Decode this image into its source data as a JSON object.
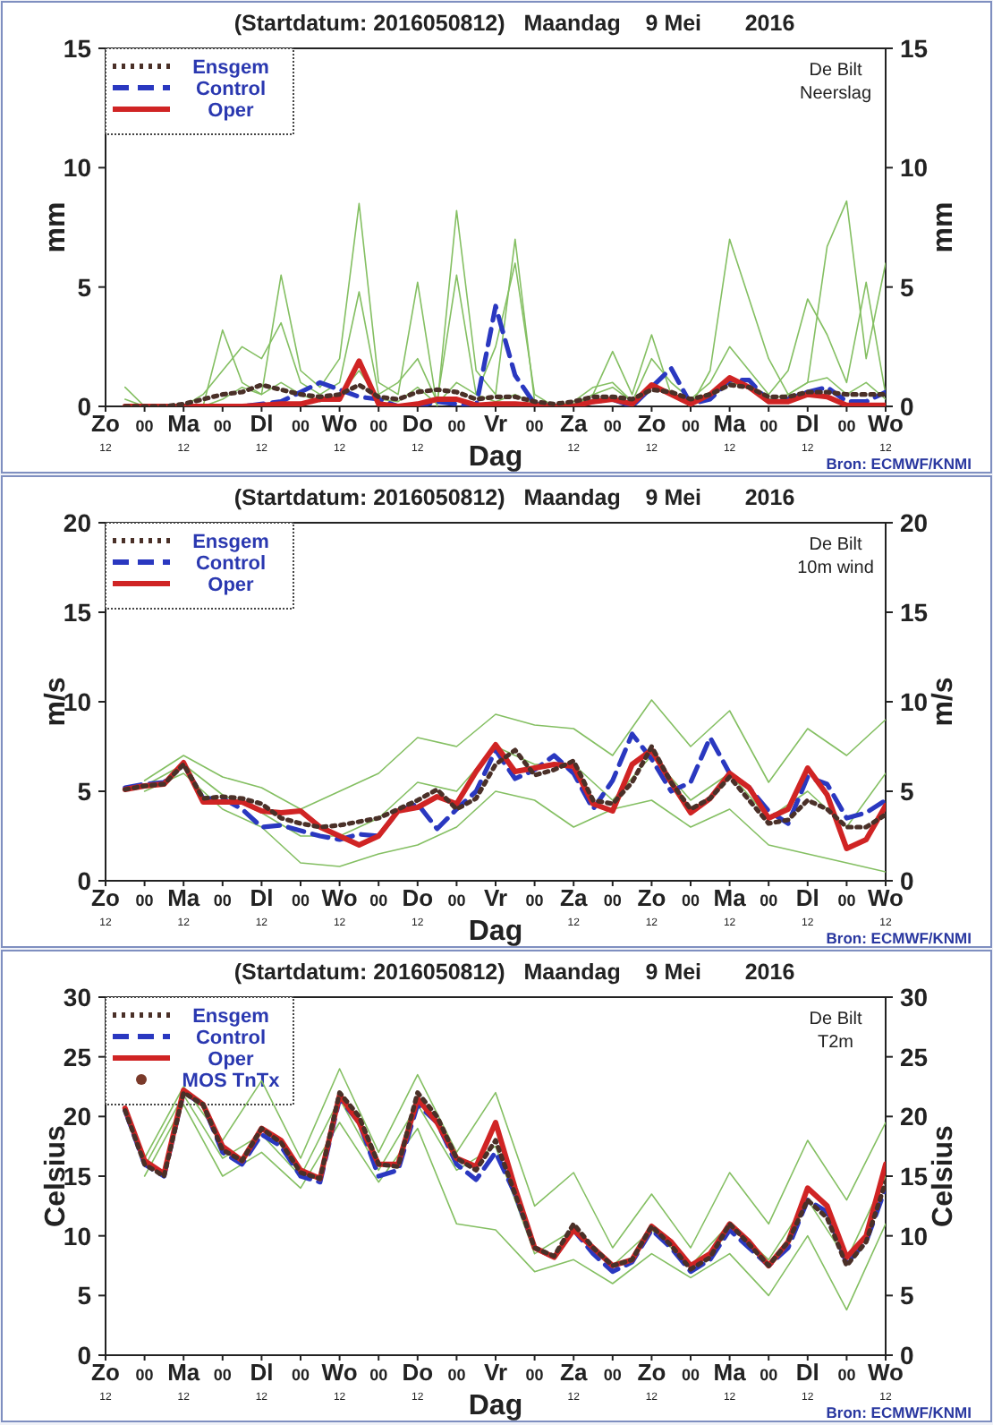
{
  "chart_data": [
    {
      "type": "line",
      "title": "(Startdatum: 2016050812)   Maandag    9 Mei       2016",
      "xlabel": "Dag",
      "ylabel": "mm",
      "y2label": "mm",
      "annotations": [
        "De Bilt",
        "Neerslag",
        "Bron: ECMWF/KNMI"
      ],
      "legend": "top left",
      "grid": false,
      "categories": [
        "Zo\n12",
        null,
        "00",
        null,
        "Ma\n12",
        null,
        "00",
        null,
        "Dl\n12",
        null,
        "00",
        null,
        "Wo\n12",
        null,
        "00",
        null,
        "Do\n12",
        null,
        "00",
        null,
        "Vr",
        null,
        "00",
        null,
        "Za\n12",
        null,
        "00",
        null,
        "Zo\n12",
        null,
        "00",
        null,
        "Ma\n12",
        null,
        "00",
        null,
        "Dl\n12",
        null,
        "00",
        null,
        "Wo\n12"
      ],
      "ylim": [
        0,
        15
      ],
      "yticks": [
        0,
        5,
        10,
        15
      ],
      "y2lim": [
        0,
        15
      ],
      "y2ticks": [
        0,
        5,
        10,
        15
      ],
      "series": [
        {
          "color": "#84bf62",
          "line_style": "solid",
          "values": [
            null,
            0.8,
            0,
            0,
            0,
            0,
            3.2,
            1.0,
            0.5,
            5.5,
            1.5,
            0.8,
            2.0,
            8.5,
            1.0,
            0.5,
            5.2,
            0,
            8.2,
            1.5,
            0.5,
            7.0,
            0.2,
            0,
            0,
            0.5,
            2.3,
            0.5,
            3.0,
            0.5,
            0,
            1.5,
            7.0,
            4.5,
            2.0,
            0.5,
            1.0,
            6.7,
            8.6,
            2.0,
            6.0
          ]
        },
        {
          "color": "#84bf62",
          "line_style": "solid",
          "values": [
            null,
            0.3,
            0,
            0,
            0,
            0.5,
            1.5,
            2.5,
            2.0,
            3.5,
            1.0,
            0.5,
            1.0,
            4.8,
            0.5,
            1.0,
            2.0,
            0.2,
            5.5,
            0.5,
            2.5,
            6.0,
            0.5,
            0,
            0.2,
            0.8,
            1.0,
            0.2,
            2.0,
            1.0,
            0.3,
            1.0,
            2.5,
            1.5,
            0.5,
            1.5,
            4.5,
            3.0,
            1.0,
            5.2,
            0.5
          ]
        },
        {
          "color": "#84bf62",
          "line_style": "solid",
          "values": [
            null,
            0,
            0,
            0,
            0,
            0,
            0.3,
            0.8,
            0.5,
            1.0,
            0.5,
            0.2,
            0.5,
            1.5,
            0.3,
            0.2,
            0.8,
            0.1,
            1.0,
            0.5,
            0.2,
            0.5,
            0.1,
            0,
            0.1,
            0.5,
            0.8,
            0.2,
            0.8,
            0.5,
            0.1,
            0.5,
            1.0,
            0.8,
            0.3,
            0.5,
            1.0,
            1.2,
            0.5,
            1.0,
            0.3
          ]
        },
        {
          "name": "Ensgem",
          "color": "#4a3028",
          "line_style": "dotted",
          "values": [
            null,
            0,
            0,
            0,
            0.1,
            0.3,
            0.5,
            0.6,
            0.9,
            0.7,
            0.5,
            0.4,
            0.5,
            0.9,
            0.4,
            0.3,
            0.6,
            0.7,
            0.6,
            0.3,
            0.4,
            0.4,
            0.2,
            0.1,
            0.2,
            0.4,
            0.4,
            0.3,
            0.7,
            0.6,
            0.3,
            0.5,
            0.9,
            0.8,
            0.4,
            0.4,
            0.6,
            0.6,
            0.5,
            0.5,
            0.5
          ]
        },
        {
          "name": "Control",
          "color": "#2a38c0",
          "line_style": "dashed",
          "values": [
            null,
            null,
            null,
            null,
            null,
            null,
            0,
            0,
            0.1,
            0.2,
            0.6,
            1.0,
            0.7,
            0.4,
            0.3,
            0,
            0,
            0.2,
            0.1,
            0,
            4.2,
            1.3,
            0.1,
            0,
            0,
            0.2,
            0.3,
            0,
            0.8,
            1.6,
            0.1,
            0.3,
            1.1,
            1.1,
            0.2,
            0.3,
            0.6,
            0.8,
            0.2,
            0.2,
            0.6
          ]
        },
        {
          "name": "Oper",
          "color": "#d02424",
          "line_style": "solid",
          "values": [
            null,
            0,
            0,
            0,
            0,
            0,
            0,
            0,
            0.05,
            0.1,
            0.1,
            0.3,
            0.3,
            1.9,
            0.1,
            0,
            0.1,
            0.3,
            0.3,
            0.05,
            0.1,
            0.1,
            0.05,
            0,
            0,
            0.2,
            0.3,
            0.1,
            0.9,
            0.5,
            0.1,
            0.5,
            1.2,
            0.8,
            0.2,
            0.2,
            0.5,
            0.4,
            0.05,
            0.05,
            0.05
          ]
        }
      ]
    },
    {
      "type": "line",
      "title": "(Startdatum: 2016050812)   Maandag    9 Mei       2016",
      "xlabel": "Dag",
      "ylabel": "m/s",
      "y2label": "m/s",
      "annotations": [
        "De Bilt",
        "10m wind",
        "Bron: ECMWF/KNMI"
      ],
      "legend": "top left",
      "grid": false,
      "categories": [
        "Zo\n12",
        null,
        "00",
        null,
        "Ma\n12",
        null,
        "00",
        null,
        "Dl\n12",
        null,
        "00",
        null,
        "Wo\n12",
        null,
        "00",
        null,
        "Do\n12",
        null,
        "00",
        null,
        "Vr",
        null,
        "00",
        null,
        "Za\n12",
        null,
        "00",
        null,
        "Zo\n12",
        null,
        "00",
        null,
        "Ma\n12",
        null,
        "00",
        null,
        "Dl\n12",
        null,
        "00",
        null,
        "Wo\n12"
      ],
      "ylim": [
        0,
        20
      ],
      "yticks": [
        0,
        5,
        10,
        15,
        20
      ],
      "y2lim": [
        0,
        20
      ],
      "y2ticks": [
        0,
        5,
        10,
        15,
        20
      ],
      "series": [
        {
          "color": "#84bf62",
          "line_style": "solid",
          "values": [
            null,
            null,
            5.6,
            null,
            7.0,
            null,
            5.8,
            null,
            5.2,
            null,
            4.0,
            null,
            5.0,
            null,
            6.0,
            null,
            8.0,
            null,
            7.5,
            null,
            9.3,
            null,
            8.7,
            null,
            8.5,
            null,
            7.0,
            null,
            10.1,
            null,
            7.5,
            null,
            9.5,
            null,
            5.5,
            null,
            8.5,
            null,
            7.0,
            null,
            9.0
          ]
        },
        {
          "color": "#84bf62",
          "line_style": "solid",
          "values": [
            null,
            null,
            5.0,
            null,
            6.0,
            null,
            4.0,
            null,
            3.0,
            null,
            1.0,
            null,
            0.8,
            null,
            1.5,
            null,
            2.0,
            null,
            3.0,
            null,
            5.0,
            null,
            4.5,
            null,
            3.0,
            null,
            4.0,
            null,
            4.5,
            null,
            3.0,
            null,
            4.0,
            null,
            2.0,
            null,
            1.5,
            null,
            1.0,
            null,
            0.5
          ]
        },
        {
          "color": "#84bf62",
          "line_style": "solid",
          "values": [
            null,
            null,
            5.3,
            null,
            6.5,
            null,
            4.8,
            null,
            3.8,
            null,
            2.5,
            null,
            2.5,
            null,
            3.5,
            null,
            5.5,
            null,
            5.0,
            null,
            7.5,
            null,
            6.5,
            null,
            6.5,
            null,
            4.5,
            null,
            7.0,
            null,
            4.5,
            null,
            6.0,
            null,
            3.5,
            null,
            5.0,
            null,
            3.0,
            null,
            6.0
          ]
        },
        {
          "name": "Ensgem",
          "color": "#4a3028",
          "line_style": "dotted",
          "values": [
            null,
            5.1,
            5.3,
            5.4,
            6.5,
            4.6,
            4.7,
            4.6,
            4.3,
            3.5,
            3.2,
            3.0,
            3.1,
            3.3,
            3.5,
            4.0,
            4.5,
            5.1,
            4.0,
            4.6,
            6.5,
            7.3,
            5.9,
            6.2,
            6.7,
            4.5,
            4.3,
            5.5,
            7.5,
            5.5,
            4.0,
            4.6,
            5.8,
            4.5,
            3.2,
            3.4,
            4.5,
            4.0,
            3.0,
            3.0,
            3.7
          ]
        },
        {
          "name": "Control",
          "color": "#2a38c0",
          "line_style": "dashed",
          "values": [
            null,
            5.2,
            5.4,
            5.5,
            6.5,
            4.6,
            4.6,
            4.0,
            3.0,
            3.1,
            2.8,
            2.5,
            2.3,
            2.6,
            2.5,
            3.9,
            4.3,
            2.9,
            4.0,
            5.0,
            7.3,
            5.7,
            6.2,
            7.0,
            6.0,
            4.0,
            5.6,
            8.2,
            6.8,
            5.0,
            5.5,
            8.0,
            6.0,
            5.2,
            3.9,
            3.2,
            5.8,
            5.4,
            3.5,
            3.8,
            4.5
          ]
        },
        {
          "name": "Oper",
          "color": "#d02424",
          "line_style": "solid",
          "values": [
            null,
            5.1,
            5.3,
            5.4,
            6.6,
            4.4,
            4.4,
            4.4,
            3.9,
            3.8,
            3.9,
            3.0,
            2.5,
            2.0,
            2.5,
            3.9,
            4.1,
            4.7,
            4.3,
            6.1,
            7.6,
            6.1,
            6.3,
            6.5,
            6.4,
            4.3,
            3.9,
            6.5,
            7.3,
            5.5,
            3.8,
            4.6,
            6.0,
            5.2,
            3.5,
            4.0,
            6.3,
            4.8,
            1.8,
            2.3,
            4.2
          ]
        }
      ]
    },
    {
      "type": "line",
      "title": "(Startdatum: 2016050812)   Maandag    9 Mei       2016",
      "xlabel": "Dag",
      "ylabel": "Celsius",
      "y2label": "Celsius",
      "annotations": [
        "De Bilt",
        "T2m",
        "Bron: ECMWF/KNMI"
      ],
      "legend": "top left",
      "grid": false,
      "categories": [
        "Zo\n12",
        null,
        "00",
        null,
        "Ma\n12",
        null,
        "00",
        null,
        "Dl\n12",
        null,
        "00",
        null,
        "Wo\n12",
        null,
        "00",
        null,
        "Do\n12",
        null,
        "00",
        null,
        "Vr",
        null,
        "00",
        null,
        "Za\n12",
        null,
        "00",
        null,
        "Zo\n12",
        null,
        "00",
        null,
        "Ma\n12",
        null,
        "00",
        null,
        "Dl\n12",
        null,
        "00",
        null,
        "Wo\n12"
      ],
      "ylim": [
        0,
        30
      ],
      "yticks": [
        0,
        5,
        10,
        15,
        20,
        25,
        30
      ],
      "y2lim": [
        0,
        30
      ],
      "y2ticks": [
        0,
        5,
        10,
        15,
        20,
        25,
        30
      ],
      "series": [
        {
          "color": "#84bf62",
          "line_style": "solid",
          "values": [
            null,
            null,
            16.5,
            null,
            22.5,
            null,
            18,
            null,
            23,
            null,
            16.5,
            null,
            24,
            null,
            17,
            null,
            23.5,
            null,
            17,
            null,
            22,
            null,
            12.5,
            null,
            15.3,
            null,
            9,
            null,
            13.5,
            null,
            9,
            null,
            15.3,
            null,
            11,
            null,
            18,
            null,
            13,
            null,
            19.5
          ]
        },
        {
          "color": "#84bf62",
          "line_style": "solid",
          "values": [
            null,
            null,
            15,
            null,
            21,
            null,
            15,
            null,
            17,
            null,
            14,
            null,
            19.5,
            null,
            14.5,
            null,
            19,
            null,
            11,
            null,
            10.5,
            null,
            7,
            null,
            8,
            null,
            6,
            null,
            8.5,
            null,
            6.5,
            null,
            8.5,
            null,
            5,
            null,
            10,
            null,
            3.8,
            null,
            11
          ]
        },
        {
          "color": "#84bf62",
          "line_style": "solid",
          "values": [
            null,
            null,
            15.8,
            null,
            21.8,
            null,
            16.5,
            null,
            18.5,
            null,
            15,
            null,
            21.5,
            null,
            15.5,
            null,
            21,
            null,
            15.5,
            null,
            17.5,
            null,
            8.5,
            null,
            10.5,
            null,
            7.5,
            null,
            10.5,
            null,
            7.5,
            null,
            11,
            null,
            8,
            null,
            13,
            null,
            8,
            null,
            15
          ]
        },
        {
          "name": "Ensgem",
          "color": "#4a3028",
          "line_style": "dotted",
          "values": [
            null,
            20.5,
            16,
            15,
            22,
            21,
            17.2,
            16.3,
            19,
            17.8,
            15.3,
            14.8,
            22,
            20,
            16,
            15.8,
            22,
            20,
            16.5,
            15.5,
            18,
            13.5,
            9,
            8.3,
            11,
            9,
            7.5,
            8,
            10.8,
            9.2,
            7.2,
            8.2,
            11,
            9.3,
            7.5,
            9.5,
            13,
            11.5,
            7.5,
            9.5,
            14.5
          ]
        },
        {
          "name": "Control",
          "color": "#2a38c0",
          "line_style": "dashed",
          "values": [
            null,
            20.5,
            16,
            15,
            22,
            21,
            17,
            16,
            18.5,
            17.5,
            15,
            14.5,
            21.5,
            19.5,
            15,
            15.5,
            21,
            19.5,
            16,
            14.7,
            17,
            13.5,
            9,
            8.2,
            10.5,
            8.5,
            7,
            7.8,
            10.5,
            9,
            7,
            8,
            10.5,
            9,
            7.5,
            9,
            13,
            12,
            7.7,
            9.5,
            14
          ]
        },
        {
          "name": "Oper",
          "color": "#d02424",
          "line_style": "solid",
          "values": [
            null,
            20.7,
            16.3,
            15.2,
            22.2,
            21,
            17.5,
            16.3,
            19,
            18,
            15.5,
            14.8,
            21.8,
            19.5,
            16,
            16,
            21.5,
            19.5,
            16.5,
            15.8,
            19.5,
            14,
            9,
            8.2,
            10.5,
            9,
            7.5,
            8,
            10.8,
            9.5,
            7.5,
            8.5,
            11,
            9.5,
            7.5,
            9.5,
            14,
            12.5,
            8.2,
            10,
            16
          ]
        },
        {
          "name": "MOS TnTx",
          "type": "scatter",
          "marker": "circle",
          "color": "#7a3a2a",
          "values": [
            null,
            null,
            null,
            null,
            null,
            null,
            null,
            null,
            null,
            null,
            null,
            null,
            null,
            null,
            null,
            null,
            null,
            null,
            null,
            null,
            null,
            null,
            null,
            null,
            null,
            null,
            null,
            null,
            null,
            null,
            null,
            null,
            null,
            null,
            null,
            null,
            null,
            null,
            null,
            null,
            null
          ]
        }
      ]
    }
  ]
}
